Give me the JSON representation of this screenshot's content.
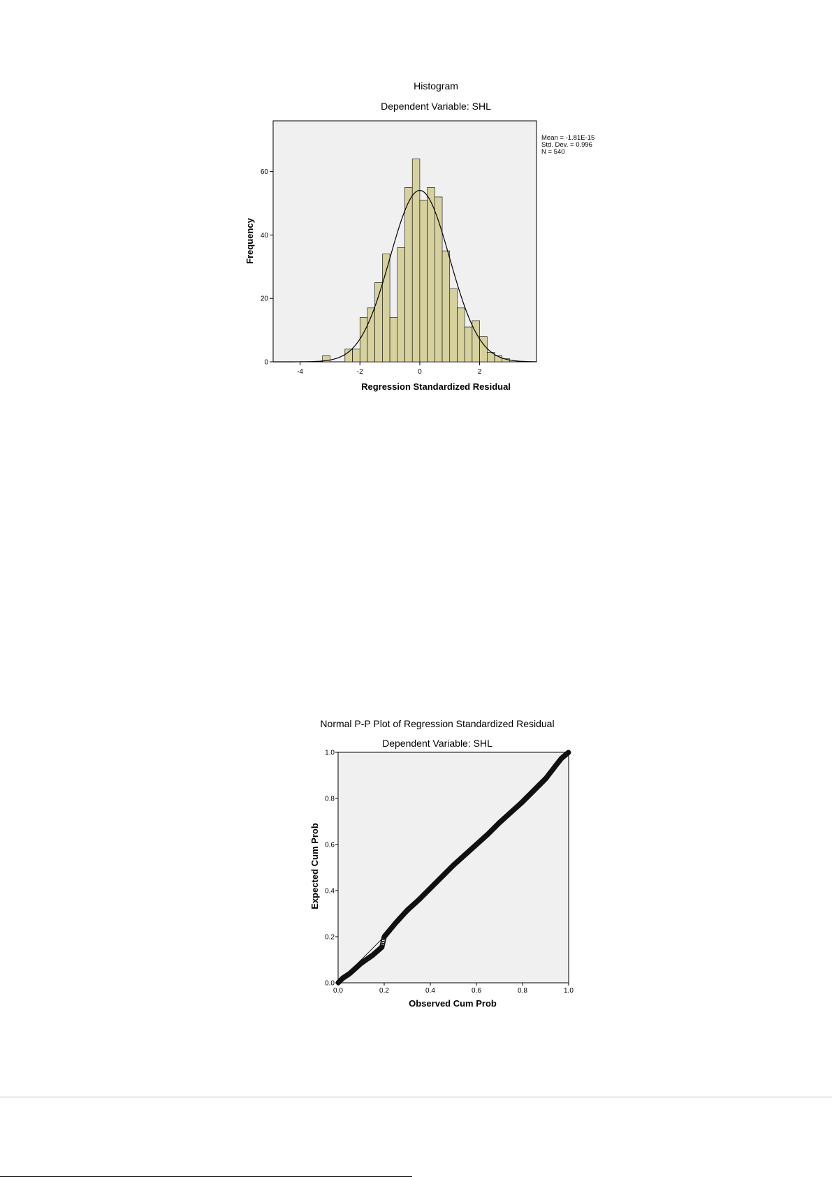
{
  "chart_data": [
    {
      "type": "bar",
      "title": "Histogram",
      "subtitle": "Dependent Variable: SHL",
      "xlabel": "Regression Standardized Residual",
      "ylabel": "Frequency",
      "xlim": [
        -4.9,
        3.9
      ],
      "ylim": [
        0,
        76
      ],
      "x_ticks": [
        -4,
        -2,
        0,
        2
      ],
      "y_ticks": [
        0,
        20,
        40,
        60
      ],
      "bin_width": 0.25,
      "bins": [
        {
          "start": -3.25,
          "value": 2
        },
        {
          "start": -3.0,
          "value": 0
        },
        {
          "start": -2.75,
          "value": 0
        },
        {
          "start": -2.5,
          "value": 4
        },
        {
          "start": -2.25,
          "value": 4
        },
        {
          "start": -2.0,
          "value": 14
        },
        {
          "start": -1.75,
          "value": 17
        },
        {
          "start": -1.5,
          "value": 25
        },
        {
          "start": -1.25,
          "value": 34
        },
        {
          "start": -1.0,
          "value": 14
        },
        {
          "start": -0.75,
          "value": 36
        },
        {
          "start": -0.5,
          "value": 55
        },
        {
          "start": -0.25,
          "value": 64
        },
        {
          "start": 0.0,
          "value": 51
        },
        {
          "start": 0.25,
          "value": 55
        },
        {
          "start": 0.5,
          "value": 52
        },
        {
          "start": 0.75,
          "value": 35
        },
        {
          "start": 1.0,
          "value": 23
        },
        {
          "start": 1.25,
          "value": 17
        },
        {
          "start": 1.5,
          "value": 11
        },
        {
          "start": 1.75,
          "value": 13
        },
        {
          "start": 2.0,
          "value": 8
        },
        {
          "start": 2.25,
          "value": 3
        },
        {
          "start": 2.5,
          "value": 2
        },
        {
          "start": 2.75,
          "value": 1
        }
      ],
      "normal_curve": {
        "mean": 0,
        "sd": 0.996,
        "n": 540
      },
      "stats": [
        "Mean = -1.81E-15",
        "Std. Dev. = 0.996",
        "N = 540"
      ],
      "bar_color": "#d6d19e",
      "plot_background": "#f0f0f0"
    },
    {
      "type": "scatter",
      "title": "Normal P-P Plot of Regression Standardized Residual",
      "subtitle": "Dependent Variable: SHL",
      "xlabel": "Observed Cum Prob",
      "ylabel": "Expected Cum Prob",
      "xlim": [
        0,
        1
      ],
      "ylim": [
        0,
        1
      ],
      "x_ticks": [
        "0.0",
        "0.2",
        "0.4",
        "0.6",
        "0.8",
        "1.0"
      ],
      "y_ticks": [
        "0.0",
        "0.2",
        "0.4",
        "0.6",
        "0.8",
        "1.0"
      ],
      "reference_line": [
        [
          0,
          0
        ],
        [
          1,
          1
        ]
      ],
      "points_curve": [
        [
          0.0,
          0.0
        ],
        [
          0.02,
          0.02
        ],
        [
          0.05,
          0.04
        ],
        [
          0.1,
          0.085
        ],
        [
          0.15,
          0.12
        ],
        [
          0.19,
          0.155
        ],
        [
          0.2,
          0.2
        ],
        [
          0.25,
          0.26
        ],
        [
          0.3,
          0.315
        ],
        [
          0.35,
          0.36
        ],
        [
          0.4,
          0.41
        ],
        [
          0.45,
          0.46
        ],
        [
          0.5,
          0.51
        ],
        [
          0.55,
          0.555
        ],
        [
          0.6,
          0.6
        ],
        [
          0.65,
          0.645
        ],
        [
          0.7,
          0.695
        ],
        [
          0.75,
          0.74
        ],
        [
          0.8,
          0.785
        ],
        [
          0.85,
          0.835
        ],
        [
          0.9,
          0.885
        ],
        [
          0.95,
          0.95
        ],
        [
          0.97,
          0.975
        ],
        [
          1.0,
          1.0
        ]
      ],
      "n_points": 540,
      "plot_background": "#f0f0f0"
    }
  ]
}
